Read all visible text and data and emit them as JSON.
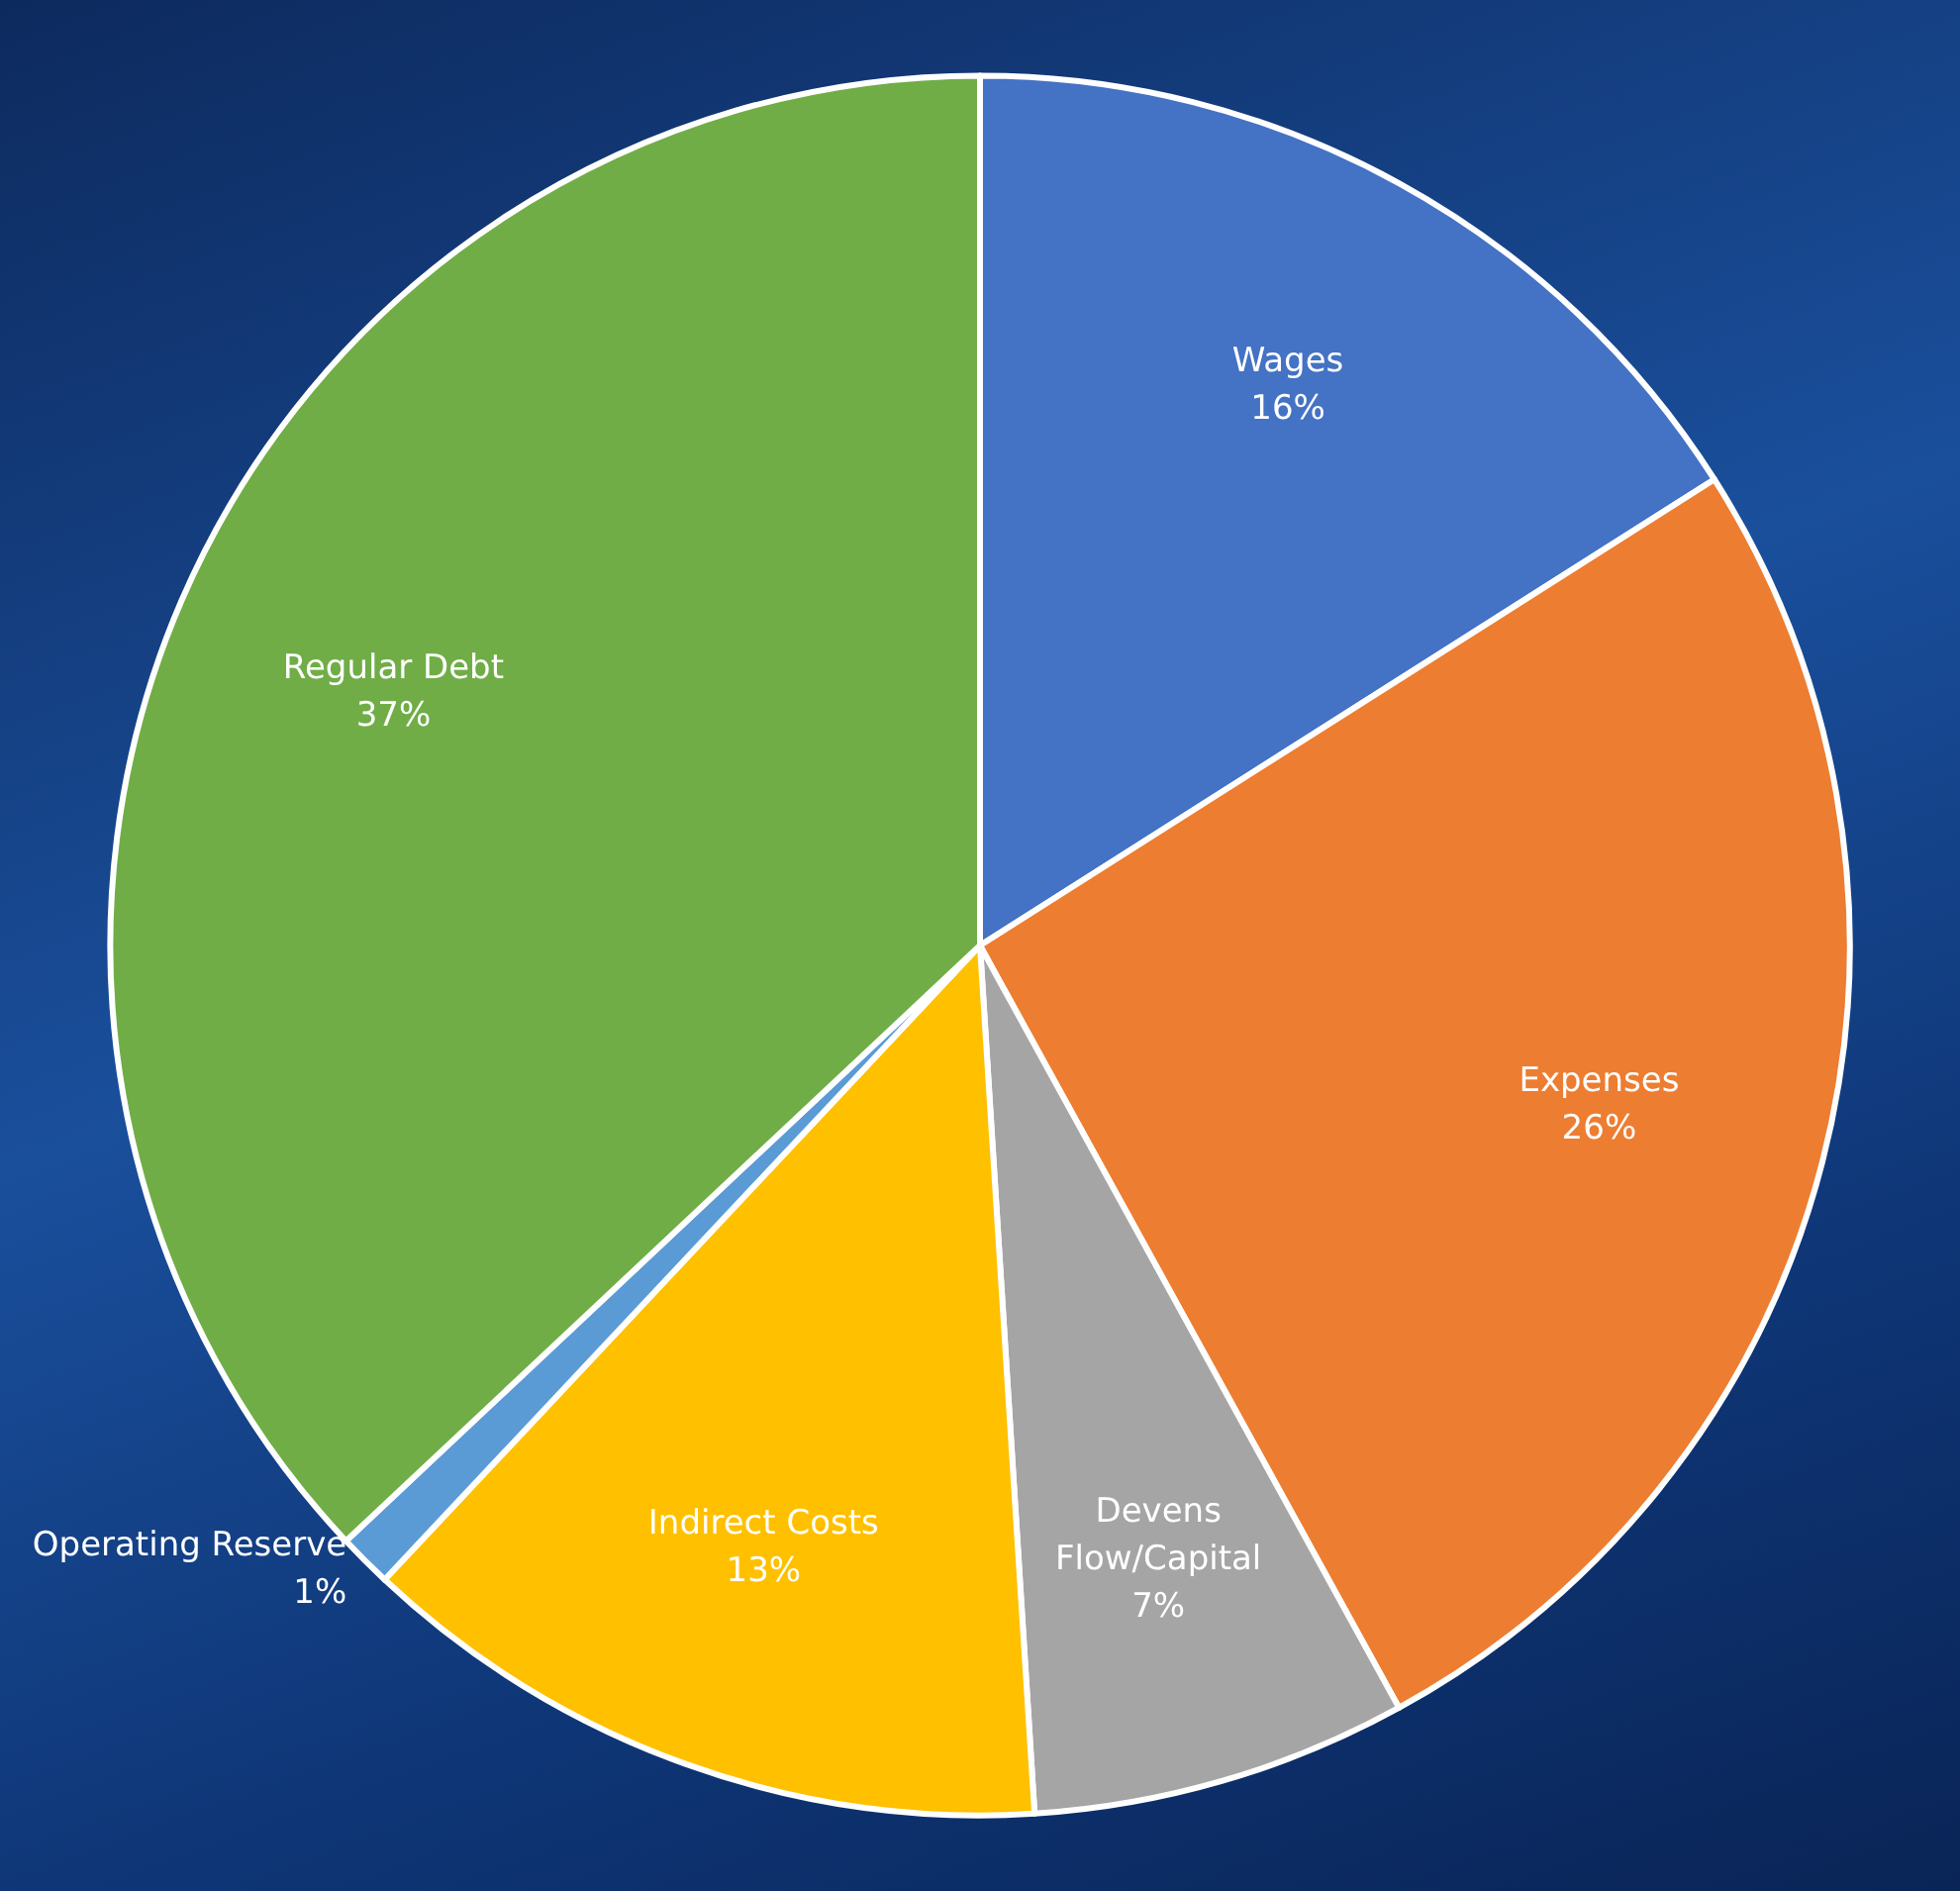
{
  "chart_data": {
    "type": "pie",
    "categories": [
      "Wages",
      "Expenses",
      "Devens\nFlow/Capital",
      "Indirect Costs",
      "Operating Reserve",
      "Regular Debt"
    ],
    "values": [
      16,
      26,
      7,
      13,
      1,
      37
    ],
    "value_labels": [
      "16%",
      "26%",
      "7%",
      "13%",
      "1%",
      "37%"
    ],
    "colors": [
      "#4472c4",
      "#ed7d31",
      "#a5a5a5",
      "#ffc000",
      "#5b9bd5",
      "#70ad47"
    ],
    "legend": false
  }
}
